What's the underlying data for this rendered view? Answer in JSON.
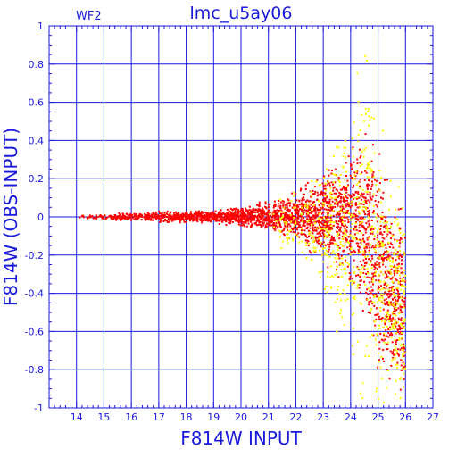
{
  "chart_data": {
    "type": "scatter",
    "title": "lmc_u5ay06",
    "panel_label": "WF2",
    "xlabel": "F814W INPUT",
    "ylabel": "F814W (OBS-INPUT)",
    "xlim": [
      13,
      27
    ],
    "ylim": [
      -1,
      1
    ],
    "x_ticks": [
      14,
      15,
      16,
      17,
      18,
      19,
      20,
      21,
      22,
      23,
      24,
      25,
      26,
      27
    ],
    "y_ticks": [
      -1,
      -0.8,
      -0.6,
      -0.4,
      -0.2,
      0,
      0.2,
      0.4,
      0.6,
      0.8,
      1
    ],
    "y_tick_labels": [
      "-1",
      "-0.8",
      "-0.6",
      "-0.4",
      "-0.2",
      "0",
      "0.2",
      "0.4",
      "0.6",
      "0.8",
      "1"
    ],
    "grid": true,
    "series": [
      {
        "color": "#ff0000",
        "envelope": {
          "x": [
            14.0,
            15,
            16,
            17,
            18,
            19,
            20,
            21,
            22,
            23,
            24,
            24.5,
            25,
            25.5,
            26
          ],
          "lo": [
            -0.01,
            -0.015,
            -0.025,
            -0.03,
            -0.03,
            -0.035,
            -0.05,
            -0.08,
            -0.12,
            -0.22,
            -0.35,
            -0.5,
            -0.75,
            -0.9,
            -1.0
          ],
          "hi": [
            0.01,
            0.015,
            0.025,
            0.03,
            0.03,
            0.035,
            0.05,
            0.08,
            0.12,
            0.22,
            0.35,
            0.47,
            0.35,
            0.1,
            0.0
          ]
        }
      },
      {
        "color": "#ffff00",
        "envelope": {
          "x": [
            21.0,
            22,
            23,
            24,
            24.5,
            25,
            25.5,
            26
          ],
          "lo": [
            -0.12,
            -0.2,
            -0.5,
            -0.8,
            -0.95,
            -1.0,
            -1.0,
            -1.0
          ],
          "hi": [
            0.05,
            0.12,
            0.35,
            0.6,
            0.95,
            0.5,
            0.2,
            0.0
          ]
        }
      }
    ]
  }
}
